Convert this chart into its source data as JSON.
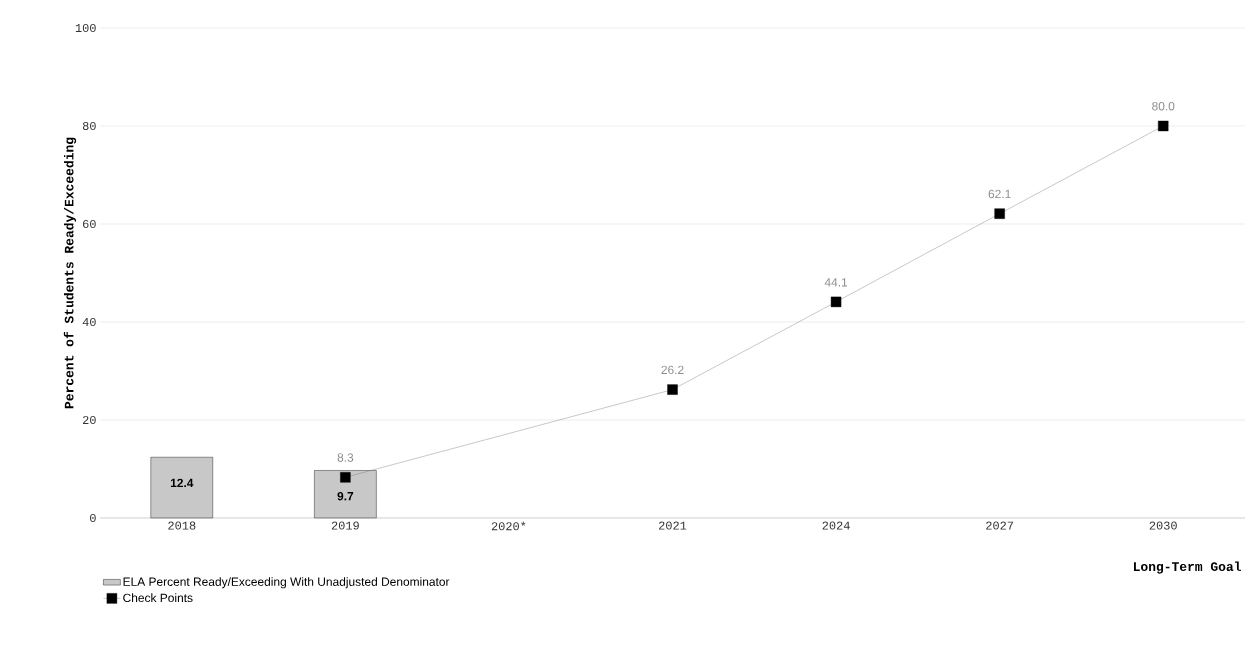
{
  "chart_data": {
    "type": "bar",
    "ylabel": "Percent of Students Ready/Exceeding",
    "categories": [
      "2018",
      "2019",
      "2020*",
      "2021",
      "2024",
      "2027",
      "2030"
    ],
    "series": [
      {
        "name": "ELA Percent Ready/Exceeding With Unadjusted Denominator",
        "color": "#c8c8c8",
        "values": [
          12.4,
          9.7,
          null,
          null,
          null,
          null,
          null
        ],
        "value_labels": [
          "12.4",
          "9.7",
          null,
          null,
          null,
          null,
          null
        ]
      },
      {
        "name": "Check Points",
        "type": "line",
        "color": "#000000",
        "marker": "square",
        "values": [
          null,
          8.3,
          null,
          26.2,
          44.1,
          62.1,
          80
        ],
        "value_labels": [
          null,
          "8.3",
          null,
          "26.2",
          "44.1",
          "62.1",
          "80.0"
        ]
      }
    ],
    "ylim": [
      0,
      100
    ],
    "yticks": [
      0,
      20,
      40,
      60,
      80,
      100
    ],
    "grid": "y",
    "legend": "bottom left",
    "annotations": [
      "Long-Term Goal"
    ]
  }
}
